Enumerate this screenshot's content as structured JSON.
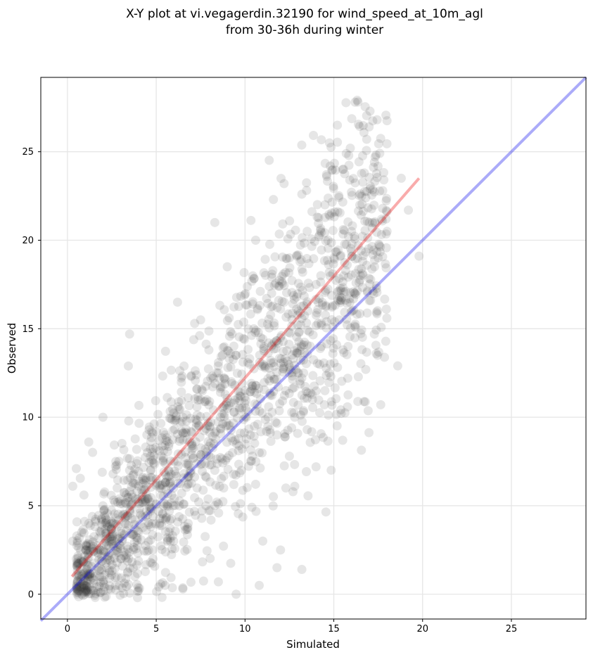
{
  "chart_data": {
    "type": "scatter",
    "title_lines": [
      "X-Y plot at vi.vegagerdin.32190 for wind_speed_at_10m_agl",
      "from 30-36h during winter"
    ],
    "xlabel": "Simulated",
    "ylabel": "Observed",
    "xlim": [
      -1.5,
      29.2
    ],
    "ylim": [
      -1.4,
      29.2
    ],
    "xticks": [
      0,
      5,
      10,
      15,
      20,
      25
    ],
    "yticks": [
      0,
      5,
      10,
      15,
      20,
      25
    ],
    "grid": true,
    "point_color": "#333333",
    "point_opacity": 0.12,
    "reference_line": {
      "name": "1:1",
      "color": "#0000ee",
      "from": [
        -1.5,
        -1.5
      ],
      "to": [
        29.2,
        29.2
      ]
    },
    "fit_line": {
      "color": "#ee0000",
      "from": [
        0.25,
        1.0
      ],
      "to": [
        19.8,
        23.5
      ]
    },
    "sample_points": [
      [
        0.5,
        2.0
      ],
      [
        0.8,
        3.5
      ],
      [
        1.0,
        1.2
      ],
      [
        1.2,
        4.0
      ],
      [
        1.5,
        0.8
      ],
      [
        1.8,
        2.5
      ],
      [
        2.0,
        5.0
      ],
      [
        2.2,
        1.5
      ],
      [
        2.5,
        3.0
      ],
      [
        2.8,
        6.0
      ],
      [
        3.0,
        2.0
      ],
      [
        3.2,
        4.5
      ],
      [
        3.5,
        7.0
      ],
      [
        3.8,
        1.0
      ],
      [
        4.0,
        3.5
      ],
      [
        4.2,
        5.5
      ],
      [
        4.5,
        8.0
      ],
      [
        4.8,
        2.5
      ],
      [
        5.0,
        6.5
      ],
      [
        5.2,
        4.0
      ],
      [
        5.5,
        9.0
      ],
      [
        5.8,
        3.0
      ],
      [
        6.0,
        7.5
      ],
      [
        6.3,
        5.0
      ],
      [
        6.5,
        10.0
      ],
      [
        6.8,
        4.0
      ],
      [
        7.0,
        8.5
      ],
      [
        7.3,
        6.0
      ],
      [
        7.5,
        11.0
      ],
      [
        7.8,
        5.0
      ],
      [
        8.0,
        9.5
      ],
      [
        8.3,
        7.0
      ],
      [
        8.5,
        12.5
      ],
      [
        8.8,
        6.0
      ],
      [
        9.0,
        10.5
      ],
      [
        9.3,
        8.0
      ],
      [
        9.5,
        13.5
      ],
      [
        9.8,
        7.0
      ],
      [
        10.0,
        11.5
      ],
      [
        10.3,
        9.0
      ],
      [
        10.5,
        15.0
      ],
      [
        10.8,
        8.0
      ],
      [
        11.0,
        13.0
      ],
      [
        11.3,
        10.0
      ],
      [
        11.5,
        17.0
      ],
      [
        11.8,
        9.0
      ],
      [
        12.0,
        14.5
      ],
      [
        12.3,
        11.5
      ],
      [
        12.5,
        19.0
      ],
      [
        12.8,
        10.0
      ],
      [
        13.0,
        16.0
      ],
      [
        13.3,
        12.5
      ],
      [
        13.5,
        20.5
      ],
      [
        13.8,
        11.0
      ],
      [
        14.0,
        17.5
      ],
      [
        14.3,
        14.0
      ],
      [
        14.5,
        22.0
      ],
      [
        14.8,
        13.0
      ],
      [
        15.0,
        19.0
      ],
      [
        15.3,
        15.5
      ],
      [
        15.5,
        24.0
      ],
      [
        15.8,
        14.0
      ],
      [
        16.0,
        20.5
      ],
      [
        16.2,
        27.8
      ],
      [
        16.5,
        18.0
      ],
      [
        16.8,
        12.7
      ],
      [
        17.0,
        21.0
      ],
      [
        17.5,
        19.0
      ],
      [
        18.0,
        20.5
      ],
      [
        18.6,
        12.9
      ],
      [
        18.8,
        23.5
      ],
      [
        19.2,
        21.7
      ],
      [
        19.8,
        19.1
      ],
      [
        15.2,
        26.5
      ],
      [
        15.7,
        24.9
      ],
      [
        8.3,
        21.0
      ],
      [
        3.5,
        14.7
      ],
      [
        2.0,
        10.0
      ],
      [
        1.2,
        8.6
      ],
      [
        6.2,
        16.5
      ],
      [
        7.5,
        15.5
      ],
      [
        9.0,
        18.5
      ],
      [
        10.6,
        20.0
      ],
      [
        11.6,
        22.3
      ],
      [
        12.2,
        23.2
      ],
      [
        13.2,
        22.6
      ],
      [
        14.6,
        23.6
      ],
      [
        15.9,
        23.4
      ],
      [
        16.8,
        22.4
      ],
      [
        4.0,
        0.2
      ],
      [
        5.5,
        0.5
      ],
      [
        6.5,
        0.3
      ],
      [
        8.5,
        0.7
      ],
      [
        9.5,
        0.0
      ],
      [
        10.8,
        0.5
      ],
      [
        11.8,
        1.5
      ],
      [
        13.2,
        1.4
      ],
      [
        12.0,
        2.5
      ],
      [
        11.0,
        3.0
      ],
      [
        12.3,
        6.0
      ],
      [
        12.8,
        6.1
      ],
      [
        13.5,
        9.3
      ],
      [
        14.0,
        7.2
      ],
      [
        15.5,
        8.7
      ],
      [
        14.5,
        11.5
      ],
      [
        12.5,
        7.8
      ],
      [
        0.3,
        6.1
      ],
      [
        0.5,
        7.1
      ],
      [
        0.3,
        3.0
      ],
      [
        0.6,
        1.0
      ]
    ]
  }
}
